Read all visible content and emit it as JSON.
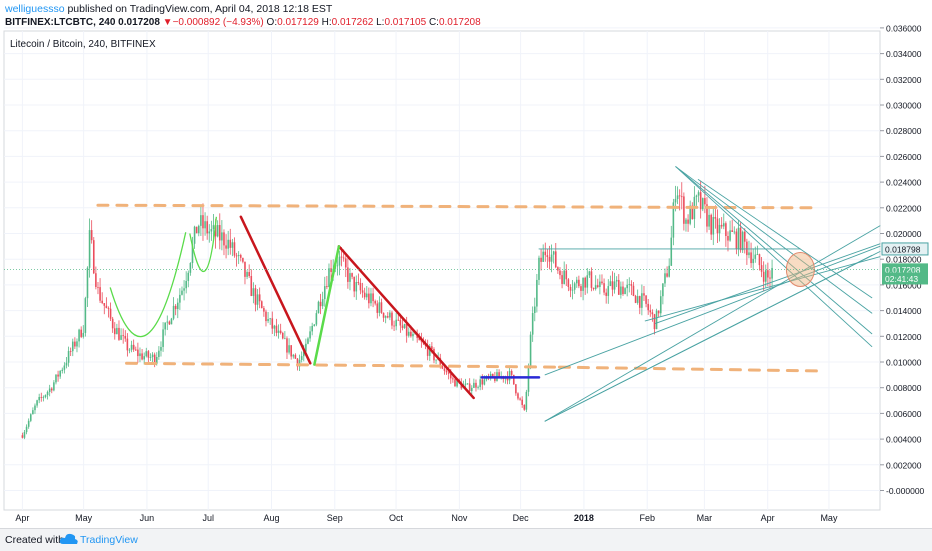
{
  "header": {
    "author": "welliguessso",
    "published": "published on TradingView.com, April 04, 2018 12:18 EST",
    "symbol": "BITFINEX:LTCBTC, 240",
    "last": "0.017208",
    "arrow": "▼",
    "change": "−0.000892 (−4.93%)",
    "o_label": "O:",
    "o": "0.017129",
    "h_label": "H:",
    "h": "0.017262",
    "l_label": "L:",
    "l": "0.017105",
    "c_label": "C:",
    "c": "0.017208"
  },
  "footer": {
    "created": "Created with",
    "brand": "TradingView",
    "logo_icon": "tradingview-cloud-icon"
  },
  "colors": {
    "up": "#53b987",
    "down": "#eb4d5c",
    "dash": "#f0b27a",
    "trend_red": "#c8161d",
    "trend_green": "#5adb4a",
    "fan": "#4aa3a3",
    "range": "#2a2ad6"
  },
  "chart_data": {
    "type": "candlestick",
    "title": "Litecoin / Bitcoin, 240, BITFINEX",
    "y_ticks": [
      "0.036000",
      "0.034000",
      "0.032000",
      "0.030000",
      "0.028000",
      "0.026000",
      "0.024000",
      "0.022000",
      "0.020000",
      "0.018000",
      "0.016000",
      "0.014000",
      "0.012000",
      "0.010000",
      "0.008000",
      "0.006000",
      "0.004000",
      "0.002000",
      "-0.000000"
    ],
    "ylim": [
      -0.0012,
      0.0365
    ],
    "x_ticks": [
      "Apr",
      "May",
      "Jun",
      "Jul",
      "Aug",
      "Sep",
      "Oct",
      "Nov",
      "Dec",
      "2018",
      "Feb",
      "Mar",
      "Apr",
      "May"
    ],
    "price_labels": [
      {
        "value": 0.018798,
        "text": "0.018798",
        "kind": "line"
      },
      {
        "value": 0.017208,
        "text": "0.017208",
        "kind": "last"
      },
      {
        "value": 0.0165,
        "text": "02:41:43",
        "kind": "timer"
      }
    ],
    "series": [
      {
        "name": "LTCBTC",
        "x": [
          "2017-04-01",
          "2017-04-08",
          "2017-04-15",
          "2017-04-22",
          "2017-05-01",
          "2017-05-04",
          "2017-05-08",
          "2017-05-15",
          "2017-05-22",
          "2017-05-29",
          "2017-06-05",
          "2017-06-12",
          "2017-06-19",
          "2017-06-26",
          "2017-07-03",
          "2017-07-10",
          "2017-07-17",
          "2017-07-24",
          "2017-07-31",
          "2017-08-07",
          "2017-08-14",
          "2017-08-18",
          "2017-08-23",
          "2017-08-30",
          "2017-09-03",
          "2017-09-10",
          "2017-09-17",
          "2017-09-24",
          "2017-10-01",
          "2017-10-08",
          "2017-10-15",
          "2017-10-22",
          "2017-10-29",
          "2017-11-05",
          "2017-11-12",
          "2017-11-19",
          "2017-11-26",
          "2017-12-03",
          "2017-12-06",
          "2017-12-10",
          "2017-12-14",
          "2017-12-20",
          "2017-12-27",
          "2018-01-03",
          "2018-01-10",
          "2018-01-17",
          "2018-01-24",
          "2018-01-31",
          "2018-02-05",
          "2018-02-12",
          "2018-02-15",
          "2018-02-20",
          "2018-02-26",
          "2018-03-05",
          "2018-03-12",
          "2018-03-19",
          "2018-03-26",
          "2018-04-01",
          "2018-04-04"
        ],
        "close": [
          0.0043,
          0.0068,
          0.008,
          0.01,
          0.0128,
          0.0198,
          0.0155,
          0.013,
          0.0112,
          0.0105,
          0.0103,
          0.0135,
          0.016,
          0.0208,
          0.02,
          0.0195,
          0.0175,
          0.015,
          0.013,
          0.0115,
          0.01,
          0.011,
          0.014,
          0.0175,
          0.018,
          0.016,
          0.015,
          0.014,
          0.013,
          0.012,
          0.0112,
          0.01,
          0.0085,
          0.008,
          0.0085,
          0.0088,
          0.009,
          0.006,
          0.012,
          0.0175,
          0.019,
          0.017,
          0.016,
          0.0165,
          0.0155,
          0.016,
          0.0155,
          0.0145,
          0.013,
          0.018,
          0.024,
          0.021,
          0.0225,
          0.0205,
          0.02,
          0.0195,
          0.018,
          0.0165,
          0.0172
        ]
      }
    ]
  }
}
